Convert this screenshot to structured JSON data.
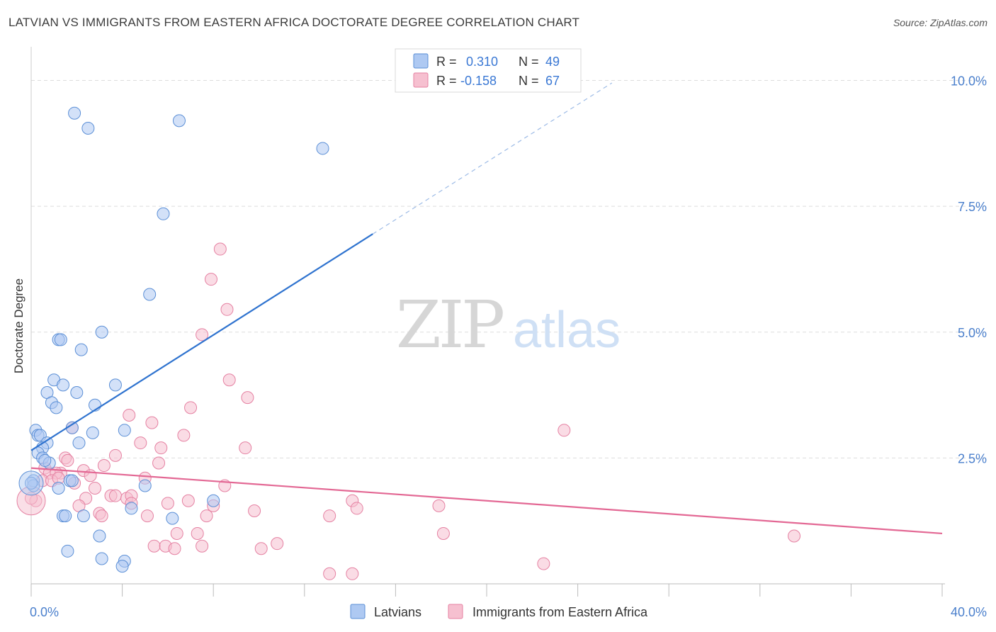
{
  "header": {
    "title": "LATVIAN VS IMMIGRANTS FROM EASTERN AFRICA DOCTORATE DEGREE CORRELATION CHART",
    "source": "Source: ZipAtlas.com"
  },
  "watermark": {
    "zip": "ZIP",
    "atlas": "atlas"
  },
  "colors": {
    "latvian_fill": "#aec9f2",
    "latvian_stroke": "#5b8fd6",
    "latvian_line": "#2f73cf",
    "ea_fill": "#f6c0d0",
    "ea_stroke": "#e581a2",
    "ea_line": "#e36894",
    "tick_label": "#4a7fcc",
    "grid": "#dddddd"
  },
  "legend_box": {
    "rows": [
      {
        "r_label": "R =",
        "r_value": "0.310",
        "n_label": "N =",
        "n_value": "49"
      },
      {
        "r_label": "R =",
        "r_value": "-0.158",
        "n_label": "N =",
        "n_value": "67"
      }
    ]
  },
  "chart_data": {
    "type": "scatter",
    "title": "LATVIAN VS IMMIGRANTS FROM EASTERN AFRICA DOCTORATE DEGREE CORRELATION CHART",
    "xlabel": "",
    "ylabel": "Doctorate Degree",
    "xlim": [
      0,
      40
    ],
    "ylim": [
      0,
      10.5
    ],
    "x_tick_labels": [
      "0.0%",
      "40.0%"
    ],
    "y_ticks": [
      2.5,
      5.0,
      7.5,
      10.0
    ],
    "y_tick_labels": [
      "2.5%",
      "5.0%",
      "7.5%",
      "10.0%"
    ],
    "grid": true,
    "legend_position": "bottom",
    "series": [
      {
        "name": "Latvians",
        "color": "#5b8fd6",
        "points": [
          [
            1.9,
            9.35
          ],
          [
            2.5,
            9.05
          ],
          [
            6.5,
            9.2
          ],
          [
            12.8,
            8.65
          ],
          [
            5.8,
            7.35
          ],
          [
            5.2,
            5.75
          ],
          [
            1.2,
            4.85
          ],
          [
            1.3,
            4.85
          ],
          [
            3.1,
            5.0
          ],
          [
            2.2,
            4.65
          ],
          [
            1.0,
            4.05
          ],
          [
            1.4,
            3.95
          ],
          [
            3.7,
            3.95
          ],
          [
            0.7,
            3.8
          ],
          [
            2.0,
            3.8
          ],
          [
            0.9,
            3.6
          ],
          [
            1.1,
            3.5
          ],
          [
            2.8,
            3.55
          ],
          [
            0.2,
            3.05
          ],
          [
            0.3,
            2.95
          ],
          [
            0.4,
            2.95
          ],
          [
            1.8,
            3.1
          ],
          [
            2.7,
            3.0
          ],
          [
            4.1,
            3.05
          ],
          [
            0.7,
            2.8
          ],
          [
            2.1,
            2.8
          ],
          [
            0.5,
            2.7
          ],
          [
            0.3,
            2.6
          ],
          [
            0.5,
            2.5
          ],
          [
            0.8,
            2.4
          ],
          [
            0.1,
            2.05
          ],
          [
            0.1,
            1.95
          ],
          [
            1.7,
            2.05
          ],
          [
            1.8,
            2.05
          ],
          [
            5.0,
            1.95
          ],
          [
            1.2,
            1.9
          ],
          [
            8.0,
            1.65
          ],
          [
            4.4,
            1.5
          ],
          [
            1.4,
            1.35
          ],
          [
            1.5,
            1.35
          ],
          [
            2.3,
            1.35
          ],
          [
            6.2,
            1.3
          ],
          [
            3.0,
            0.95
          ],
          [
            1.6,
            0.65
          ],
          [
            3.1,
            0.5
          ],
          [
            4.1,
            0.45
          ],
          [
            4.0,
            0.35
          ],
          [
            0.6,
            2.45
          ],
          [
            0.0,
            2.0
          ]
        ]
      },
      {
        "name": "Immigrants from Eastern Africa",
        "color": "#e581a2",
        "points": [
          [
            8.3,
            6.65
          ],
          [
            7.9,
            6.05
          ],
          [
            8.6,
            5.45
          ],
          [
            7.5,
            4.95
          ],
          [
            8.7,
            4.05
          ],
          [
            9.5,
            3.7
          ],
          [
            7.0,
            3.5
          ],
          [
            4.3,
            3.35
          ],
          [
            5.3,
            3.2
          ],
          [
            23.4,
            3.05
          ],
          [
            1.8,
            3.1
          ],
          [
            6.7,
            2.95
          ],
          [
            4.8,
            2.8
          ],
          [
            5.7,
            2.7
          ],
          [
            9.4,
            2.7
          ],
          [
            1.5,
            2.5
          ],
          [
            1.6,
            2.45
          ],
          [
            3.7,
            2.55
          ],
          [
            3.2,
            2.35
          ],
          [
            5.6,
            2.4
          ],
          [
            0.6,
            2.3
          ],
          [
            2.3,
            2.25
          ],
          [
            1.3,
            2.2
          ],
          [
            0.8,
            2.2
          ],
          [
            1.1,
            2.2
          ],
          [
            2.6,
            2.15
          ],
          [
            0.5,
            2.05
          ],
          [
            0.9,
            2.05
          ],
          [
            1.9,
            2.0
          ],
          [
            5.0,
            2.1
          ],
          [
            8.5,
            1.95
          ],
          [
            2.8,
            1.9
          ],
          [
            3.5,
            1.75
          ],
          [
            3.7,
            1.75
          ],
          [
            4.2,
            1.7
          ],
          [
            2.4,
            1.7
          ],
          [
            4.4,
            1.75
          ],
          [
            6.0,
            1.6
          ],
          [
            6.9,
            1.65
          ],
          [
            4.4,
            1.6
          ],
          [
            8.0,
            1.55
          ],
          [
            14.1,
            1.65
          ],
          [
            14.3,
            1.5
          ],
          [
            17.9,
            1.55
          ],
          [
            2.1,
            1.55
          ],
          [
            3.0,
            1.4
          ],
          [
            3.1,
            1.35
          ],
          [
            5.1,
            1.35
          ],
          [
            7.7,
            1.35
          ],
          [
            9.8,
            1.45
          ],
          [
            13.1,
            1.35
          ],
          [
            6.4,
            1.0
          ],
          [
            7.3,
            1.0
          ],
          [
            18.1,
            1.0
          ],
          [
            33.5,
            0.95
          ],
          [
            10.8,
            0.8
          ],
          [
            7.5,
            0.75
          ],
          [
            5.4,
            0.75
          ],
          [
            5.9,
            0.75
          ],
          [
            6.3,
            0.7
          ],
          [
            10.1,
            0.7
          ],
          [
            22.5,
            0.4
          ],
          [
            13.1,
            0.2
          ],
          [
            14.1,
            0.2
          ],
          [
            0.2,
            1.65
          ],
          [
            0.0,
            1.7
          ],
          [
            1.2,
            2.1
          ]
        ]
      }
    ],
    "trend_lines": [
      {
        "series": "Latvians",
        "x": [
          0,
          15
        ],
        "y": [
          2.65,
          6.95
        ],
        "dashed_extension_to": [
          25.5,
          9.95
        ]
      },
      {
        "series": "Immigrants from Eastern Africa",
        "x": [
          0,
          40
        ],
        "y": [
          2.3,
          1.0
        ]
      }
    ]
  }
}
